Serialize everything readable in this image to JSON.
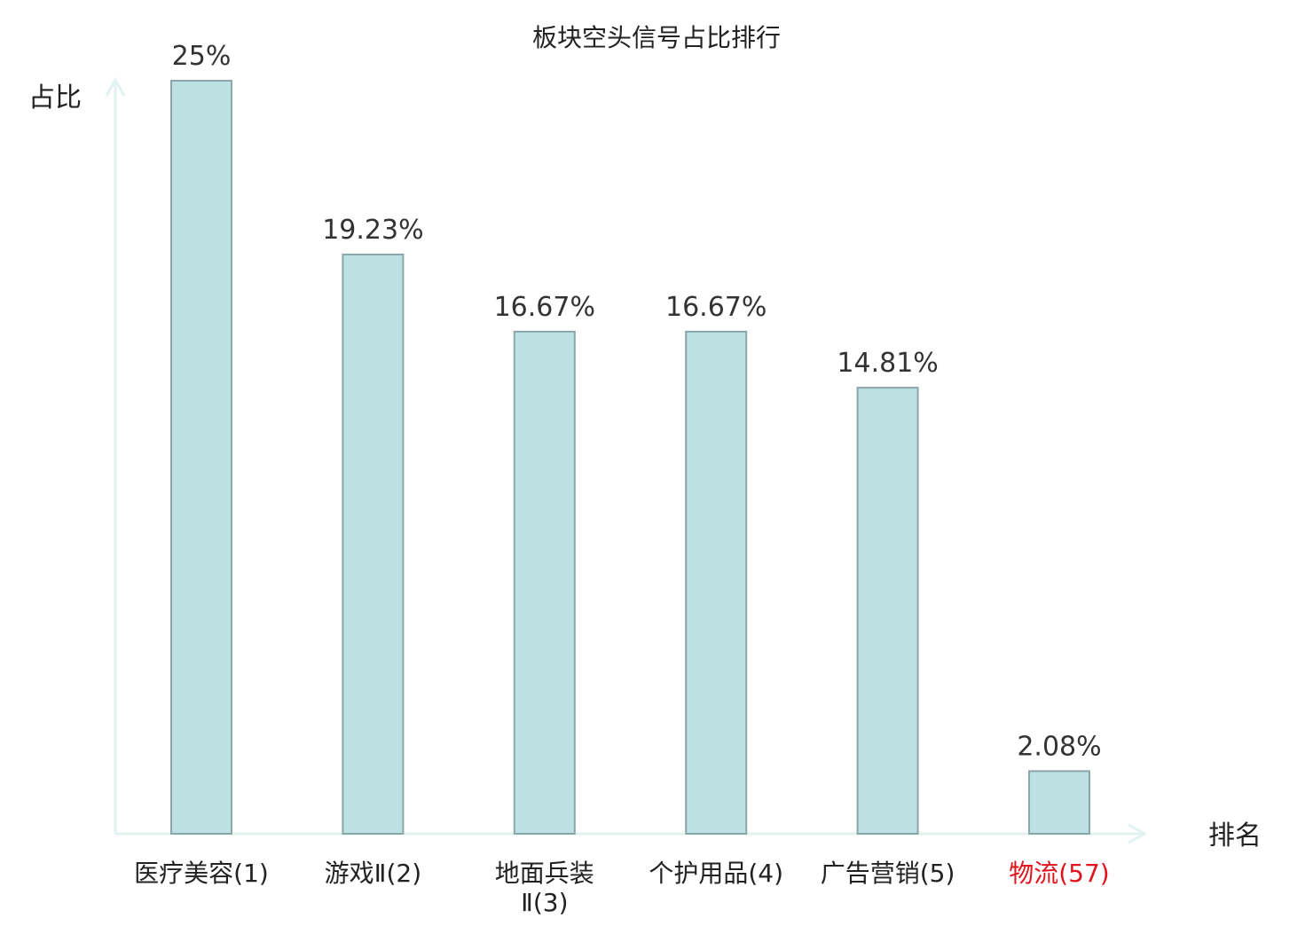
{
  "chart_data": {
    "type": "bar",
    "title": "板块空头信号占比排行",
    "xlabel": "排名",
    "ylabel": "占比",
    "categories": [
      {
        "lines": [
          "医疗美容(1)"
        ],
        "highlight": false
      },
      {
        "lines": [
          "游戏Ⅱ(2)"
        ],
        "highlight": false
      },
      {
        "lines": [
          "地面兵装",
          "Ⅱ(3)"
        ],
        "highlight": false
      },
      {
        "lines": [
          "个护用品(4)"
        ],
        "highlight": false
      },
      {
        "lines": [
          "广告营销(5)"
        ],
        "highlight": false
      },
      {
        "lines": [
          "物流(57)"
        ],
        "highlight": true
      }
    ],
    "values": [
      25,
      19.23,
      16.67,
      16.67,
      14.81,
      2.08
    ],
    "value_labels": [
      "25%",
      "19.23%",
      "16.67%",
      "16.67%",
      "14.81%",
      "2.08%"
    ],
    "ylim": [
      0,
      25
    ],
    "grid": false,
    "legend": "none"
  },
  "colors": {
    "bar_fill": "#bde0e3",
    "bar_stroke": "#8aa6a9",
    "axis": "#e1f3f1",
    "text": "#222222",
    "value_text": "#333333",
    "highlight_text": "#e0141e"
  }
}
